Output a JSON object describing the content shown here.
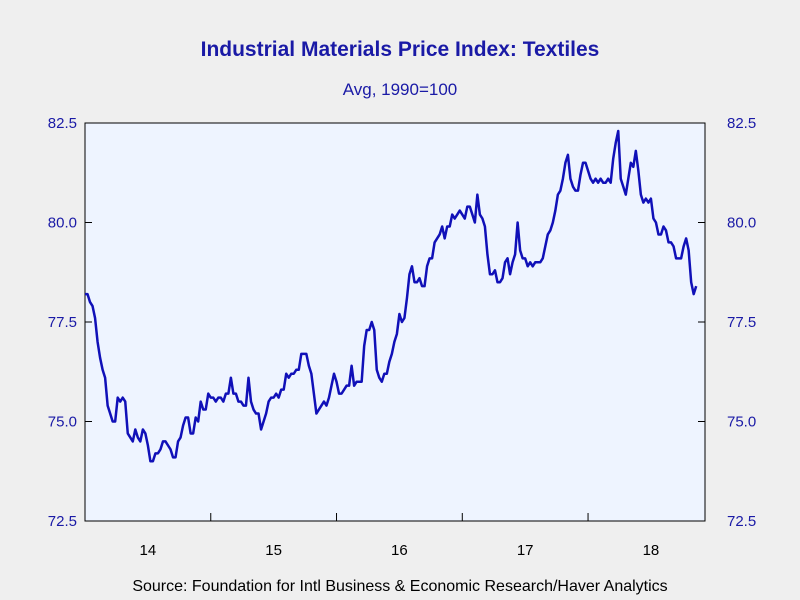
{
  "title": "Industrial Materials Price Index: Textiles",
  "subtitle": "Avg, 1990=100",
  "source": "Source:  Foundation for Intl Business & Economic Research/Haver Analytics",
  "colors": {
    "plot_bg": "#eef4ff",
    "line": "#1010b8",
    "text": "#1a1aa6",
    "frame": "#000000"
  },
  "chart_data": {
    "type": "line",
    "title": "Industrial Materials Price Index: Textiles",
    "subtitle": "Avg, 1990=100",
    "ylim": [
      72.5,
      82.5
    ],
    "xlim": [
      2014.0,
      2018.93
    ],
    "yticks": [
      "72.5",
      "75.0",
      "77.5",
      "80.0",
      "82.5"
    ],
    "ytick_values": [
      72.5,
      75.0,
      77.5,
      80.0,
      82.5
    ],
    "xtick_labels": [
      "14",
      "15",
      "16",
      "17",
      "18"
    ],
    "xtick_values": [
      2014,
      2015,
      2016,
      2017,
      2018
    ],
    "grid": false,
    "legend": "none",
    "series": [
      {
        "x": [
          2014.0,
          2014.02,
          2014.04,
          2014.06,
          2014.08,
          2014.1,
          2014.12,
          2014.14,
          2014.16,
          2014.18,
          2014.2,
          2014.22,
          2014.24,
          2014.26,
          2014.28,
          2014.3,
          2014.32,
          2014.34,
          2014.36,
          2014.38,
          2014.4,
          2014.42,
          2014.44,
          2014.46,
          2014.48,
          2014.5,
          2014.52,
          2014.54,
          2014.56,
          2014.58,
          2014.6,
          2014.62,
          2014.64,
          2014.66,
          2014.68,
          2014.7,
          2014.72,
          2014.74,
          2014.76,
          2014.78,
          2014.8,
          2014.82,
          2014.84,
          2014.86,
          2014.88,
          2014.9,
          2014.92,
          2014.94,
          2014.96,
          2014.98,
          2015.0,
          2015.02,
          2015.04,
          2015.06,
          2015.08,
          2015.1,
          2015.12,
          2015.14,
          2015.16,
          2015.18,
          2015.2,
          2015.22,
          2015.24,
          2015.26,
          2015.28,
          2015.3,
          2015.32,
          2015.34,
          2015.36,
          2015.38,
          2015.4,
          2015.42,
          2015.44,
          2015.46,
          2015.48,
          2015.5,
          2015.52,
          2015.54,
          2015.56,
          2015.58,
          2015.6,
          2015.62,
          2015.64,
          2015.66,
          2015.68,
          2015.7,
          2015.72,
          2015.74,
          2015.76,
          2015.78,
          2015.8,
          2015.82,
          2015.84,
          2015.86,
          2015.88,
          2015.9,
          2015.92,
          2015.94,
          2015.96,
          2015.98,
          2016.0,
          2016.02,
          2016.04,
          2016.06,
          2016.08,
          2016.1,
          2016.12,
          2016.14,
          2016.16,
          2016.18,
          2016.2,
          2016.22,
          2016.24,
          2016.26,
          2016.28,
          2016.3,
          2016.32,
          2016.34,
          2016.36,
          2016.38,
          2016.4,
          2016.42,
          2016.44,
          2016.46,
          2016.48,
          2016.5,
          2016.52,
          2016.54,
          2016.56,
          2016.58,
          2016.6,
          2016.62,
          2016.64,
          2016.66,
          2016.68,
          2016.7,
          2016.72,
          2016.74,
          2016.76,
          2016.78,
          2016.8,
          2016.82,
          2016.84,
          2016.86,
          2016.88,
          2016.9,
          2016.92,
          2016.94,
          2016.96,
          2016.98,
          2017.0,
          2017.02,
          2017.04,
          2017.06,
          2017.08,
          2017.1,
          2017.12,
          2017.14,
          2017.16,
          2017.18,
          2017.2,
          2017.22,
          2017.24,
          2017.26,
          2017.28,
          2017.3,
          2017.32,
          2017.34,
          2017.36,
          2017.38,
          2017.4,
          2017.42,
          2017.44,
          2017.46,
          2017.48,
          2017.5,
          2017.52,
          2017.54,
          2017.56,
          2017.58,
          2017.6,
          2017.62,
          2017.64,
          2017.66,
          2017.68,
          2017.7,
          2017.72,
          2017.74,
          2017.76,
          2017.78,
          2017.8,
          2017.82,
          2017.84,
          2017.86,
          2017.88,
          2017.9,
          2017.92,
          2017.94,
          2017.96,
          2017.98,
          2018.0,
          2018.02,
          2018.04,
          2018.06,
          2018.08,
          2018.1,
          2018.12,
          2018.14,
          2018.16,
          2018.18,
          2018.2,
          2018.22,
          2018.24,
          2018.26,
          2018.28,
          2018.3,
          2018.32,
          2018.34,
          2018.36,
          2018.38,
          2018.4,
          2018.42,
          2018.44,
          2018.46,
          2018.48,
          2018.5,
          2018.52,
          2018.54,
          2018.56,
          2018.58,
          2018.6,
          2018.62,
          2018.64,
          2018.66,
          2018.68,
          2018.7,
          2018.72,
          2018.74,
          2018.76,
          2018.78,
          2018.8,
          2018.82,
          2018.84,
          2018.86
        ],
        "values": [
          78.2,
          78.2,
          78.0,
          77.9,
          77.6,
          77.0,
          76.6,
          76.3,
          76.1,
          75.4,
          75.2,
          75.0,
          75.0,
          75.6,
          75.5,
          75.6,
          75.5,
          74.7,
          74.6,
          74.5,
          74.8,
          74.6,
          74.5,
          74.8,
          74.7,
          74.4,
          74.0,
          74.0,
          74.2,
          74.2,
          74.3,
          74.5,
          74.5,
          74.4,
          74.3,
          74.1,
          74.1,
          74.5,
          74.6,
          74.9,
          75.1,
          75.1,
          74.7,
          74.7,
          75.1,
          75.0,
          75.5,
          75.3,
          75.3,
          75.7,
          75.6,
          75.6,
          75.5,
          75.6,
          75.6,
          75.5,
          75.7,
          75.7,
          76.1,
          75.7,
          75.7,
          75.5,
          75.5,
          75.4,
          75.4,
          76.1,
          75.5,
          75.3,
          75.2,
          75.2,
          74.8,
          75.0,
          75.2,
          75.5,
          75.6,
          75.6,
          75.7,
          75.6,
          75.8,
          75.8,
          76.2,
          76.1,
          76.2,
          76.2,
          76.3,
          76.3,
          76.7,
          76.7,
          76.7,
          76.4,
          76.2,
          75.7,
          75.2,
          75.3,
          75.4,
          75.5,
          75.4,
          75.6,
          75.9,
          76.2,
          76.0,
          75.7,
          75.7,
          75.8,
          75.9,
          75.9,
          76.4,
          75.9,
          76.0,
          76.0,
          76.0,
          76.9,
          77.3,
          77.3,
          77.5,
          77.3,
          76.3,
          76.1,
          76.0,
          76.2,
          76.2,
          76.5,
          76.7,
          77.0,
          77.2,
          77.7,
          77.5,
          77.6,
          78.1,
          78.7,
          78.9,
          78.5,
          78.5,
          78.6,
          78.4,
          78.4,
          78.9,
          79.1,
          79.1,
          79.5,
          79.6,
          79.7,
          79.9,
          79.6,
          79.9,
          79.9,
          80.2,
          80.1,
          80.2,
          80.3,
          80.2,
          80.1,
          80.4,
          80.4,
          80.2,
          80.0,
          80.7,
          80.2,
          80.1,
          79.9,
          79.2,
          78.7,
          78.7,
          78.8,
          78.5,
          78.5,
          78.6,
          79.0,
          79.1,
          78.7,
          79.0,
          79.2,
          80.0,
          79.3,
          79.1,
          79.1,
          78.9,
          79.0,
          78.9,
          79.0,
          79.0,
          79.0,
          79.1,
          79.4,
          79.7,
          79.8,
          80.0,
          80.3,
          80.7,
          80.8,
          81.1,
          81.5,
          81.7,
          81.1,
          80.9,
          80.8,
          80.8,
          81.2,
          81.5,
          81.5,
          81.3,
          81.1,
          81.0,
          81.1,
          81.0,
          81.1,
          81.0,
          81.0,
          81.1,
          81.0,
          81.6,
          82.0,
          82.3,
          81.1,
          80.9,
          80.7,
          81.1,
          81.5,
          81.4,
          81.8,
          81.3,
          80.7,
          80.5,
          80.6,
          80.5,
          80.6,
          80.1,
          80.0,
          79.7,
          79.7,
          79.9,
          79.8,
          79.5,
          79.5,
          79.4,
          79.1,
          79.1,
          79.1,
          79.4,
          79.6,
          79.3,
          78.5,
          78.2,
          78.4
        ]
      }
    ]
  }
}
